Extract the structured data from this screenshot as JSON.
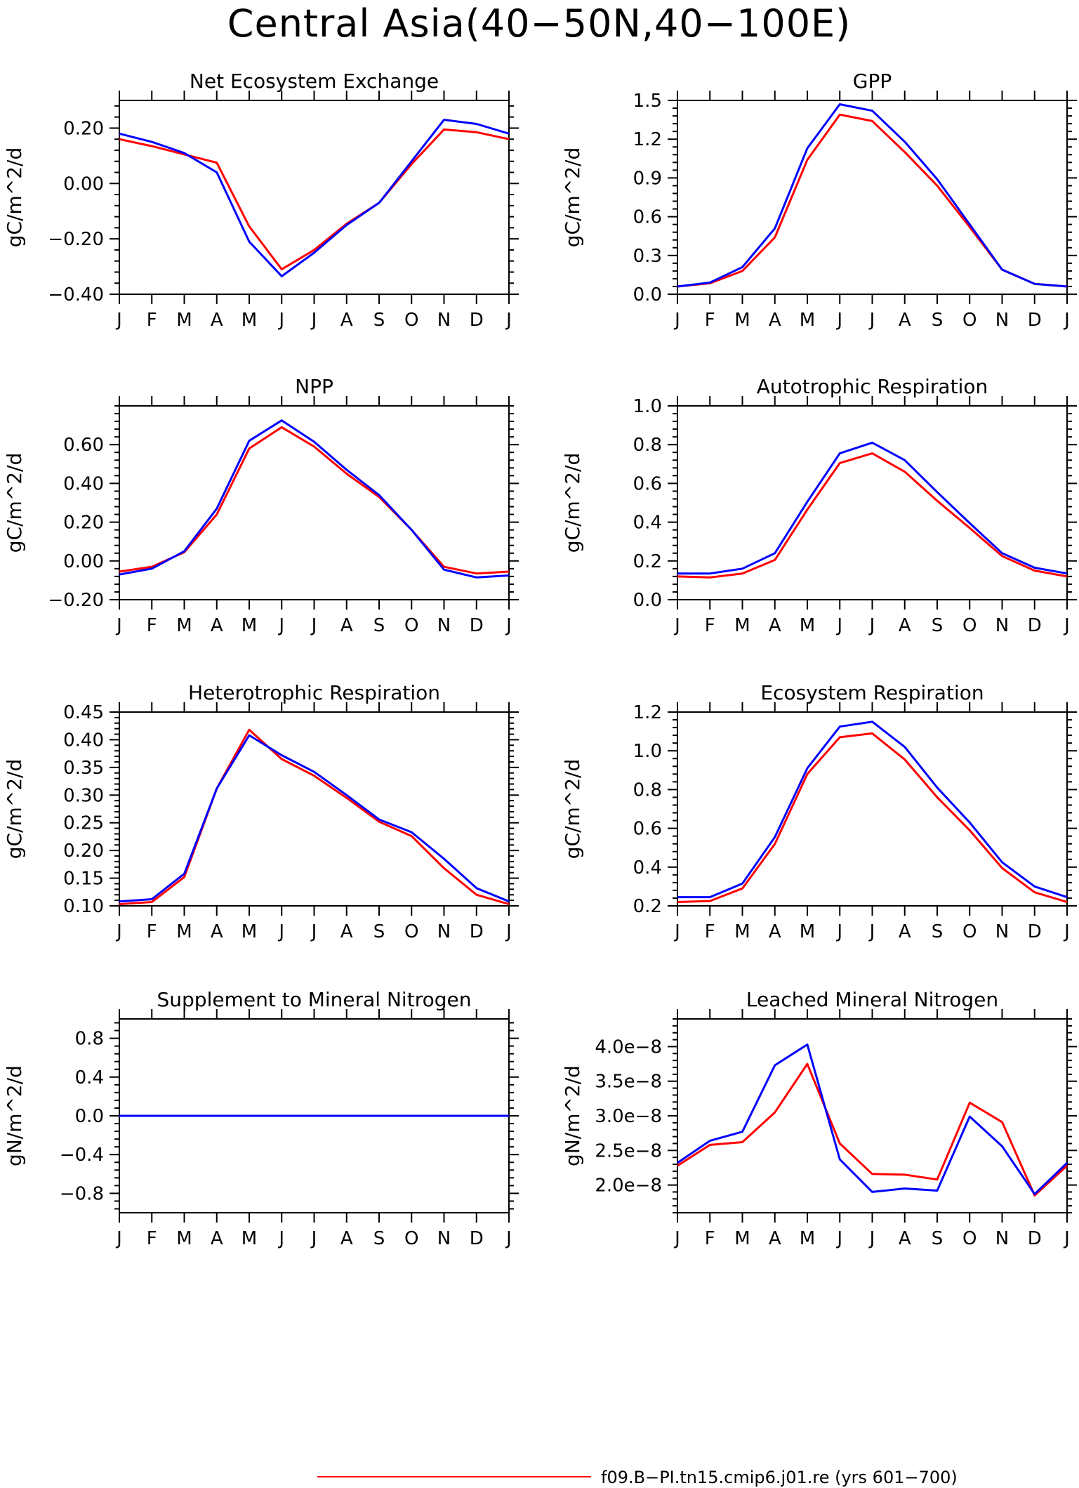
{
  "figure": {
    "title": "Central Asia(40−50N,40−100E)",
    "legend": [
      {
        "label": "f09.B−PI.tn15.cmip6.j01.re (yrs 601−700)",
        "color": "#ff0000"
      }
    ]
  },
  "chart_data": [
    {
      "type": "line",
      "title": "Net Ecosystem Exchange",
      "ylabel": "gC/m^2/d",
      "categories": [
        "J",
        "F",
        "M",
        "A",
        "M",
        "J",
        "J",
        "A",
        "S",
        "O",
        "N",
        "D",
        "J"
      ],
      "ylim": [
        -0.4,
        0.3
      ],
      "yticks": [
        -0.4,
        -0.2,
        0.0,
        0.2
      ],
      "ytick_labels": [
        "−0.40",
        "−0.20",
        "0.00",
        "0.20"
      ],
      "series": [
        {
          "color": "#ff0000",
          "values": [
            0.16,
            0.135,
            0.105,
            0.075,
            -0.155,
            -0.31,
            -0.24,
            -0.145,
            -0.07,
            0.07,
            0.195,
            0.185,
            0.16
          ]
        },
        {
          "color": "#0000ff",
          "values": [
            0.18,
            0.15,
            0.11,
            0.04,
            -0.21,
            -0.335,
            -0.25,
            -0.15,
            -0.07,
            0.08,
            0.23,
            0.215,
            0.18
          ]
        }
      ]
    },
    {
      "type": "line",
      "title": "GPP",
      "ylabel": "gC/m^2/d",
      "categories": [
        "J",
        "F",
        "M",
        "A",
        "M",
        "J",
        "J",
        "A",
        "S",
        "O",
        "N",
        "D",
        "J"
      ],
      "ylim": [
        0.0,
        1.5
      ],
      "yticks": [
        0.0,
        0.3,
        0.6,
        0.9,
        1.2,
        1.5
      ],
      "ytick_labels": [
        "0.0",
        "0.3",
        "0.6",
        "0.9",
        "1.2",
        "1.5"
      ],
      "series": [
        {
          "color": "#ff0000",
          "values": [
            0.06,
            0.085,
            0.18,
            0.44,
            1.04,
            1.39,
            1.34,
            1.1,
            0.84,
            0.52,
            0.19,
            0.08,
            0.06
          ]
        },
        {
          "color": "#0000ff",
          "values": [
            0.06,
            0.09,
            0.21,
            0.51,
            1.13,
            1.47,
            1.42,
            1.18,
            0.89,
            0.54,
            0.19,
            0.08,
            0.06
          ]
        }
      ]
    },
    {
      "type": "line",
      "title": "NPP",
      "ylabel": "gC/m^2/d",
      "categories": [
        "J",
        "F",
        "M",
        "A",
        "M",
        "J",
        "J",
        "A",
        "S",
        "O",
        "N",
        "D",
        "J"
      ],
      "ylim": [
        -0.2,
        0.8
      ],
      "yticks": [
        -0.2,
        0.0,
        0.2,
        0.4,
        0.6
      ],
      "ytick_labels": [
        "−0.20",
        "0.00",
        "0.20",
        "0.40",
        "0.60"
      ],
      "series": [
        {
          "color": "#ff0000",
          "values": [
            -0.055,
            -0.03,
            0.045,
            0.24,
            0.58,
            0.69,
            0.59,
            0.45,
            0.33,
            0.16,
            -0.03,
            -0.065,
            -0.055
          ]
        },
        {
          "color": "#0000ff",
          "values": [
            -0.07,
            -0.04,
            0.05,
            0.27,
            0.62,
            0.725,
            0.615,
            0.47,
            0.34,
            0.16,
            -0.045,
            -0.085,
            -0.075
          ]
        }
      ]
    },
    {
      "type": "line",
      "title": "Autotrophic Respiration",
      "ylabel": "gC/m^2/d",
      "categories": [
        "J",
        "F",
        "M",
        "A",
        "M",
        "J",
        "J",
        "A",
        "S",
        "O",
        "N",
        "D",
        "J"
      ],
      "ylim": [
        0.0,
        1.0
      ],
      "yticks": [
        0.0,
        0.2,
        0.4,
        0.6,
        0.8,
        1.0
      ],
      "ytick_labels": [
        "0.0",
        "0.2",
        "0.4",
        "0.6",
        "0.8",
        "1.0"
      ],
      "series": [
        {
          "color": "#ff0000",
          "values": [
            0.12,
            0.115,
            0.135,
            0.205,
            0.465,
            0.705,
            0.755,
            0.66,
            0.51,
            0.37,
            0.225,
            0.15,
            0.12
          ]
        },
        {
          "color": "#0000ff",
          "values": [
            0.135,
            0.135,
            0.16,
            0.24,
            0.505,
            0.755,
            0.81,
            0.72,
            0.555,
            0.395,
            0.24,
            0.165,
            0.135
          ]
        }
      ]
    },
    {
      "type": "line",
      "title": "Heterotrophic Respiration",
      "ylabel": "gC/m^2/d",
      "categories": [
        "J",
        "F",
        "M",
        "A",
        "M",
        "J",
        "J",
        "A",
        "S",
        "O",
        "N",
        "D",
        "J"
      ],
      "ylim": [
        0.1,
        0.45
      ],
      "yticks": [
        0.1,
        0.15,
        0.2,
        0.25,
        0.3,
        0.35,
        0.4,
        0.45
      ],
      "ytick_labels": [
        "0.10",
        "0.15",
        "0.20",
        "0.25",
        "0.30",
        "0.35",
        "0.40",
        "0.45"
      ],
      "series": [
        {
          "color": "#ff0000",
          "values": [
            0.103,
            0.107,
            0.152,
            0.312,
            0.418,
            0.365,
            0.335,
            0.295,
            0.252,
            0.226,
            0.168,
            0.12,
            0.103
          ]
        },
        {
          "color": "#0000ff",
          "values": [
            0.108,
            0.112,
            0.158,
            0.312,
            0.408,
            0.372,
            0.342,
            0.3,
            0.256,
            0.233,
            0.185,
            0.132,
            0.108
          ]
        }
      ]
    },
    {
      "type": "line",
      "title": "Ecosystem Respiration",
      "ylabel": "gC/m^2/d",
      "categories": [
        "J",
        "F",
        "M",
        "A",
        "M",
        "J",
        "J",
        "A",
        "S",
        "O",
        "N",
        "D",
        "J"
      ],
      "ylim": [
        0.2,
        1.2
      ],
      "yticks": [
        0.2,
        0.4,
        0.6,
        0.8,
        1.0,
        1.2
      ],
      "ytick_labels": [
        "0.2",
        "0.4",
        "0.6",
        "0.8",
        "1.0",
        "1.2"
      ],
      "series": [
        {
          "color": "#ff0000",
          "values": [
            0.22,
            0.225,
            0.29,
            0.52,
            0.88,
            1.07,
            1.09,
            0.955,
            0.76,
            0.59,
            0.395,
            0.27,
            0.22
          ]
        },
        {
          "color": "#0000ff",
          "values": [
            0.245,
            0.245,
            0.315,
            0.555,
            0.91,
            1.125,
            1.15,
            1.02,
            0.81,
            0.63,
            0.425,
            0.3,
            0.245
          ]
        }
      ]
    },
    {
      "type": "line",
      "title": "Supplement to Mineral Nitrogen",
      "ylabel": "gN/m^2/d",
      "categories": [
        "J",
        "F",
        "M",
        "A",
        "M",
        "J",
        "J",
        "A",
        "S",
        "O",
        "N",
        "D",
        "J"
      ],
      "ylim": [
        -1.0,
        1.0
      ],
      "yticks": [
        -0.8,
        -0.4,
        0.0,
        0.4,
        0.8
      ],
      "ytick_labels": [
        "−0.8",
        "−0.4",
        "0.0",
        "0.4",
        "0.8"
      ],
      "series": [
        {
          "color": "#ff0000",
          "values": [
            0,
            0,
            0,
            0,
            0,
            0,
            0,
            0,
            0,
            0,
            0,
            0,
            0
          ]
        },
        {
          "color": "#0000ff",
          "values": [
            0,
            0,
            0,
            0,
            0,
            0,
            0,
            0,
            0,
            0,
            0,
            0,
            0
          ]
        }
      ]
    },
    {
      "type": "line",
      "title": "Leached Mineral Nitrogen",
      "ylabel": "gN/m^2/d",
      "categories": [
        "J",
        "F",
        "M",
        "A",
        "M",
        "J",
        "J",
        "A",
        "S",
        "O",
        "N",
        "D",
        "J"
      ],
      "ylim": [
        1.6e-08,
        4.4e-08
      ],
      "yticks": [
        2e-08,
        2.5e-08,
        3e-08,
        3.5e-08,
        4e-08
      ],
      "ytick_labels": [
        "2.0e−8",
        "2.5e−8",
        "3.0e−8",
        "3.5e−8",
        "4.0e−8"
      ],
      "series": [
        {
          "color": "#ff0000",
          "values": [
            2.28e-08,
            2.58e-08,
            2.62e-08,
            3.05e-08,
            3.75e-08,
            2.6e-08,
            2.16e-08,
            2.15e-08,
            2.08e-08,
            3.19e-08,
            2.91e-08,
            1.85e-08,
            2.28e-08
          ]
        },
        {
          "color": "#0000ff",
          "values": [
            2.32e-08,
            2.64e-08,
            2.77e-08,
            3.73e-08,
            4.03e-08,
            2.37e-08,
            1.9e-08,
            1.95e-08,
            1.92e-08,
            2.99e-08,
            2.56e-08,
            1.87e-08,
            2.32e-08
          ]
        }
      ]
    }
  ]
}
